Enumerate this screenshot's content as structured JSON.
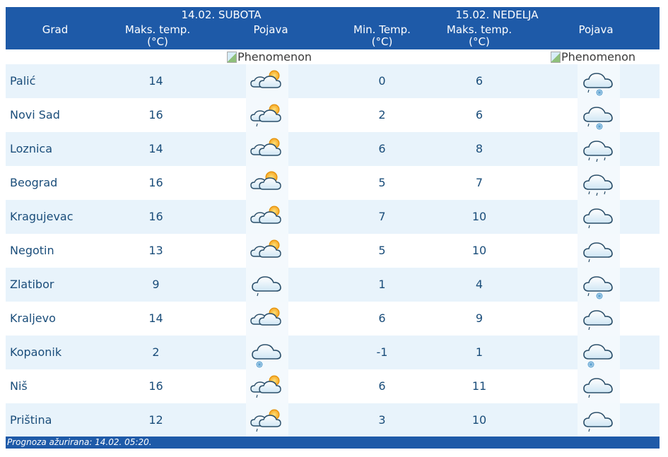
{
  "header": {
    "day1_title": "14.02. SUBOTA",
    "day2_title": "15.02. NEDELJA",
    "col_grad": "Grad",
    "col_max_l1": "Maks. temp.",
    "col_max_l2": "(°C)",
    "col_min_l1": "Min. Temp.",
    "col_min_l2": "(°C)",
    "col_pojava": "Pojava"
  },
  "phenomenon_alt": "Phenomenon",
  "rows": [
    {
      "city": "Palić",
      "d1_max": "14",
      "d1_icon": "partly-cloudy-icon",
      "d2_min": "0",
      "d2_max": "6",
      "d2_icon": "cloud-rain-snow-icon"
    },
    {
      "city": "Novi Sad",
      "d1_max": "16",
      "d1_icon": "partly-cloudy-rain-icon",
      "d2_min": "2",
      "d2_max": "6",
      "d2_icon": "cloud-rain-snow-icon"
    },
    {
      "city": "Loznica",
      "d1_max": "14",
      "d1_icon": "partly-cloudy-icon",
      "d2_min": "6",
      "d2_max": "8",
      "d2_icon": "cloud-rain-icon"
    },
    {
      "city": "Beograd",
      "d1_max": "16",
      "d1_icon": "mostly-sunny-icon",
      "d2_min": "5",
      "d2_max": "7",
      "d2_icon": "cloud-rain-icon"
    },
    {
      "city": "Kragujevac",
      "d1_max": "16",
      "d1_icon": "partly-cloudy-icon",
      "d2_min": "7",
      "d2_max": "10",
      "d2_icon": "cloud-light-rain-icon"
    },
    {
      "city": "Negotin",
      "d1_max": "13",
      "d1_icon": "partly-cloudy-icon",
      "d2_min": "5",
      "d2_max": "10",
      "d2_icon": "cloud-light-rain-icon"
    },
    {
      "city": "Zlatibor",
      "d1_max": "9",
      "d1_icon": "cloud-light-rain-icon",
      "d2_min": "1",
      "d2_max": "4",
      "d2_icon": "cloud-rain-snow-icon"
    },
    {
      "city": "Kraljevo",
      "d1_max": "14",
      "d1_icon": "partly-cloudy-icon",
      "d2_min": "6",
      "d2_max": "9",
      "d2_icon": "cloud-light-rain-icon"
    },
    {
      "city": "Kopaonik",
      "d1_max": "2",
      "d1_icon": "cloud-snow-icon",
      "d2_min": "-1",
      "d2_max": "1",
      "d2_icon": "cloud-snow-icon"
    },
    {
      "city": "Niš",
      "d1_max": "16",
      "d1_icon": "partly-cloudy-rain-icon",
      "d2_min": "6",
      "d2_max": "11",
      "d2_icon": "cloud-light-rain-icon"
    },
    {
      "city": "Priština",
      "d1_max": "12",
      "d1_icon": "partly-cloudy-rain-icon",
      "d2_min": "3",
      "d2_max": "10",
      "d2_icon": "cloud-light-rain-icon"
    }
  ],
  "footer": "Prognoza ažurirana:  14.02. 05:20.",
  "colors": {
    "header_bg": "#1e5aa8",
    "row_alt_bg": "#e8f3fb",
    "text": "#1a4d7a"
  }
}
